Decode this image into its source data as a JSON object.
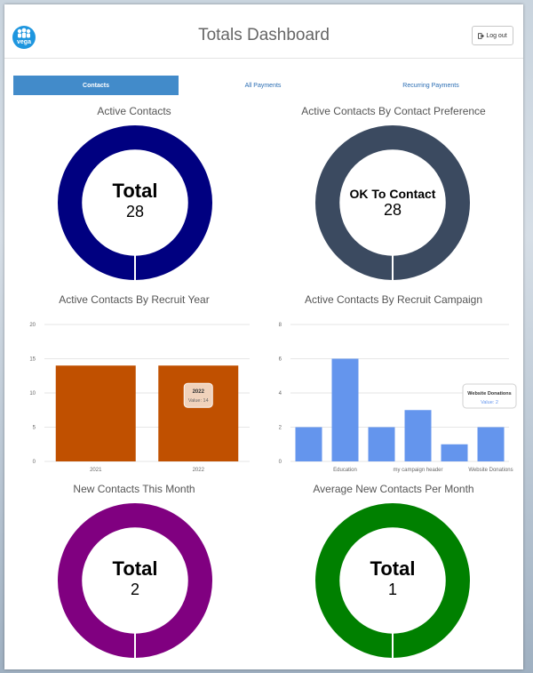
{
  "header": {
    "logo_text": "vega",
    "title": "Totals Dashboard",
    "logout_label": "Log out"
  },
  "tabs": [
    {
      "label": "Contacts",
      "active": true
    },
    {
      "label": "All Payments",
      "active": false
    },
    {
      "label": "Recurring Payments",
      "active": false
    }
  ],
  "donuts": {
    "active_contacts": {
      "title": "Active Contacts",
      "label": "Total",
      "value": "28",
      "color": "#000080"
    },
    "contact_preference": {
      "title": "Active Contacts By Contact Preference",
      "label": "OK To Contact",
      "value": "28",
      "color": "#3b4a60"
    },
    "new_this_month": {
      "title": "New Contacts This Month",
      "label": "Total",
      "value": "2",
      "color": "#800080"
    },
    "avg_per_month": {
      "title": "Average New Contacts Per Month",
      "label": "Total",
      "value": "1",
      "color": "#008000"
    }
  },
  "chart_data": [
    {
      "type": "bar",
      "title": "Active Contacts By Recruit Year",
      "categories": [
        "2021",
        "2022"
      ],
      "values": [
        14,
        14
      ],
      "ylim": [
        0,
        20
      ],
      "yticks": [
        0,
        5,
        10,
        15,
        20
      ],
      "color": "#c05000",
      "tooltip": {
        "title": "2022",
        "text": "Value: 14"
      }
    },
    {
      "type": "bar",
      "title": "Active Contacts By Recruit Campaign",
      "categories": [
        "",
        "Education",
        "",
        "my campaign header",
        "",
        "Website Donations"
      ],
      "values": [
        2,
        6,
        2,
        3,
        1,
        2
      ],
      "ylim": [
        0,
        8
      ],
      "yticks": [
        0,
        2,
        4,
        6,
        8
      ],
      "color": "#6495ed",
      "tooltip": {
        "title": "Website Donations",
        "text": "Value: 2"
      }
    }
  ]
}
